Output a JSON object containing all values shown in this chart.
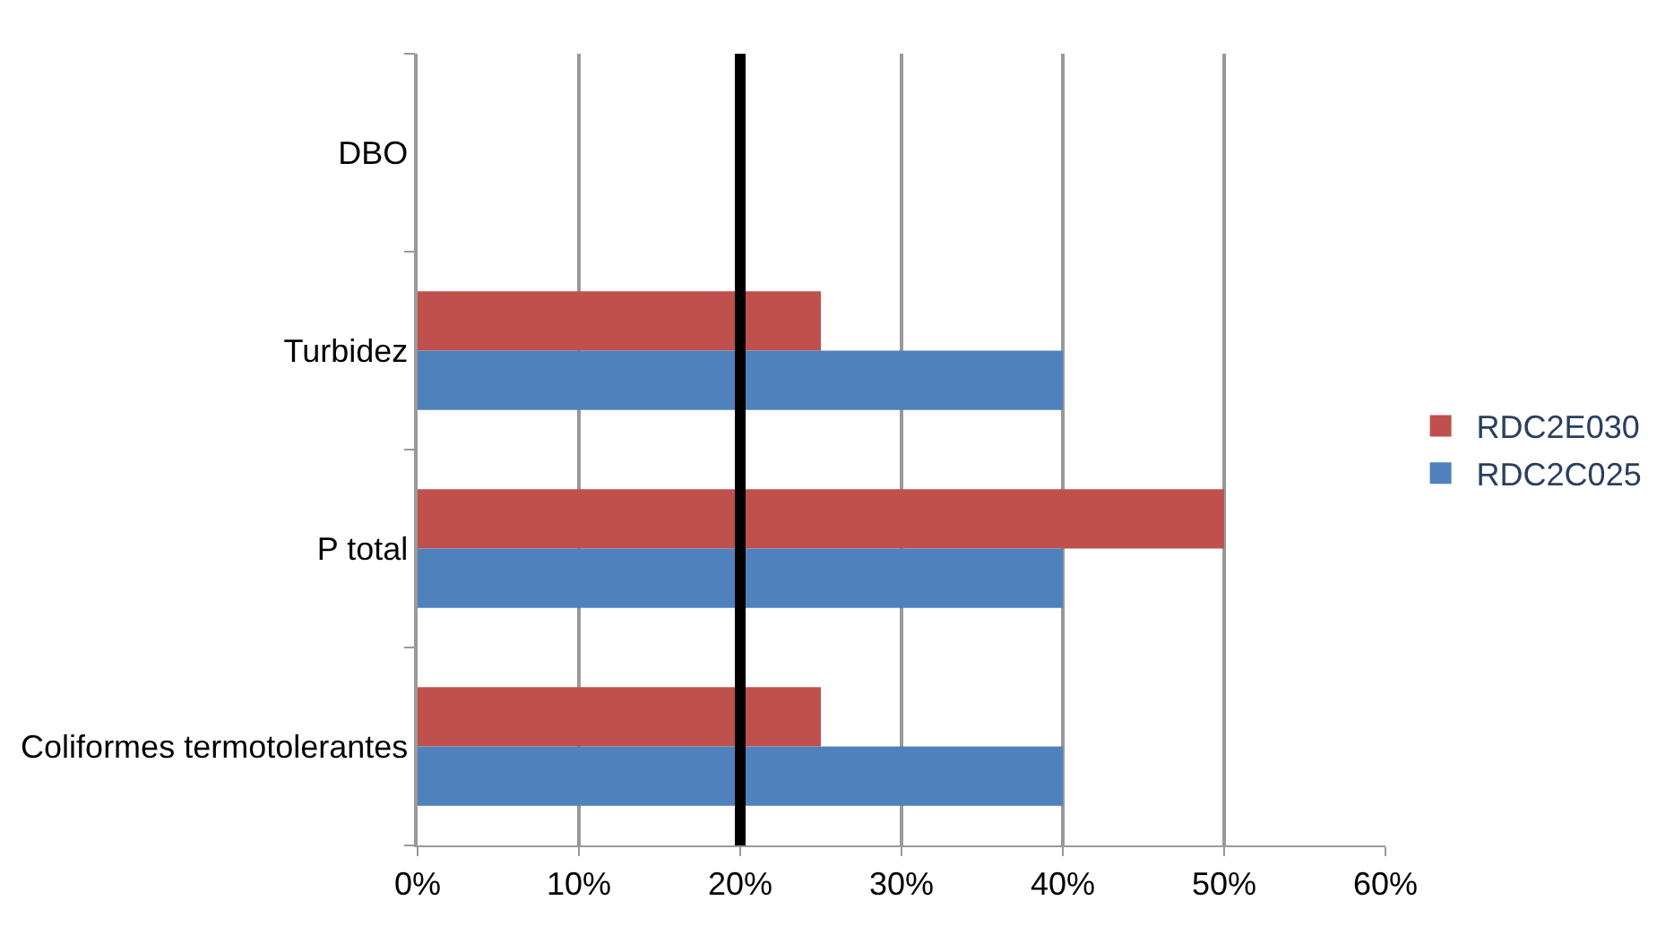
{
  "chart_data": {
    "type": "bar",
    "orientation": "horizontal",
    "categories": [
      "DBO",
      "Turbidez",
      "P total",
      "Coliformes termotolerantes"
    ],
    "series": [
      {
        "name": "RDC2E030",
        "color": "#c0504d",
        "values": [
          null,
          25,
          50,
          25
        ]
      },
      {
        "name": "RDC2C025",
        "color": "#4f81bd",
        "values": [
          null,
          40,
          40,
          40
        ]
      }
    ],
    "xlim": [
      0,
      60
    ],
    "xticks": [
      {
        "value": 0,
        "label": "0%"
      },
      {
        "value": 10,
        "label": "10%"
      },
      {
        "value": 20,
        "label": "20%"
      },
      {
        "value": 30,
        "label": "30%"
      },
      {
        "value": 40,
        "label": "40%"
      },
      {
        "value": 50,
        "label": "50%"
      },
      {
        "value": 60,
        "label": "60%"
      }
    ],
    "ref_lines": [
      {
        "axis": "x",
        "value": 20,
        "color": "#000000"
      }
    ],
    "grid": "x",
    "legend": "right"
  }
}
